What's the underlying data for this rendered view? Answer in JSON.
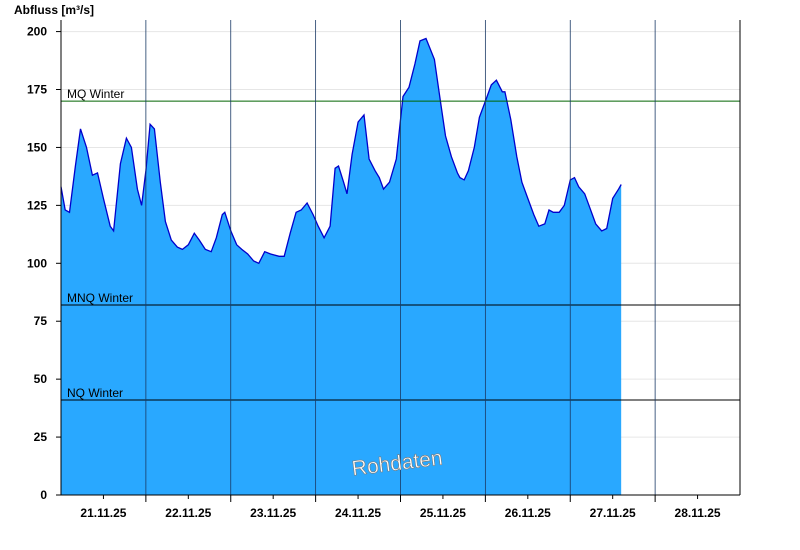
{
  "chart_data": {
    "type": "area",
    "ylabel": "Abfluss [m³/s]",
    "ylim": [
      0,
      205
    ],
    "y_ticks": [
      0,
      25,
      50,
      75,
      100,
      125,
      150,
      175,
      200
    ],
    "x_range_days": [
      20.5,
      28.5
    ],
    "x_ticks": [
      {
        "day": 21,
        "label": "21.11.25"
      },
      {
        "day": 22,
        "label": "22.11.25"
      },
      {
        "day": 23,
        "label": "23.11.25"
      },
      {
        "day": 24,
        "label": "24.11.25"
      },
      {
        "day": 25,
        "label": "25.11.25"
      },
      {
        "day": 26,
        "label": "26.11.25"
      },
      {
        "day": 27,
        "label": "27.11.25"
      },
      {
        "day": 28,
        "label": "28.11.25"
      }
    ],
    "reference_lines": [
      {
        "label": "MQ Winter",
        "value": 170,
        "color": "#006400"
      },
      {
        "label": "MNQ Winter",
        "value": 82,
        "color": "#000000"
      },
      {
        "label": "NQ Winter",
        "value": 41,
        "color": "#000000"
      }
    ],
    "series": [
      {
        "fill_color": "#29a8ff",
        "line_color": "#0000cc",
        "points": [
          [
            20.5,
            133
          ],
          [
            20.55,
            123
          ],
          [
            20.6,
            122
          ],
          [
            20.67,
            142
          ],
          [
            20.73,
            158
          ],
          [
            20.8,
            150
          ],
          [
            20.87,
            138
          ],
          [
            20.93,
            139
          ],
          [
            21.0,
            128
          ],
          [
            21.08,
            116
          ],
          [
            21.12,
            114
          ],
          [
            21.2,
            143
          ],
          [
            21.27,
            154
          ],
          [
            21.33,
            150
          ],
          [
            21.4,
            132
          ],
          [
            21.45,
            125
          ],
          [
            21.5,
            140
          ],
          [
            21.55,
            160
          ],
          [
            21.6,
            158
          ],
          [
            21.67,
            135
          ],
          [
            21.73,
            118
          ],
          [
            21.8,
            110
          ],
          [
            21.87,
            107
          ],
          [
            21.93,
            106
          ],
          [
            22.0,
            108
          ],
          [
            22.07,
            113
          ],
          [
            22.13,
            110
          ],
          [
            22.2,
            106
          ],
          [
            22.27,
            105
          ],
          [
            22.33,
            111
          ],
          [
            22.4,
            121
          ],
          [
            22.43,
            122
          ],
          [
            22.5,
            114
          ],
          [
            22.57,
            108
          ],
          [
            22.63,
            106
          ],
          [
            22.7,
            104
          ],
          [
            22.77,
            101
          ],
          [
            22.83,
            100
          ],
          [
            22.9,
            105
          ],
          [
            22.97,
            104
          ],
          [
            23.07,
            103
          ],
          [
            23.13,
            103
          ],
          [
            23.2,
            113
          ],
          [
            23.27,
            122
          ],
          [
            23.33,
            123
          ],
          [
            23.4,
            126
          ],
          [
            23.47,
            121
          ],
          [
            23.53,
            116
          ],
          [
            23.6,
            111
          ],
          [
            23.67,
            116
          ],
          [
            23.73,
            141
          ],
          [
            23.77,
            142
          ],
          [
            23.83,
            135
          ],
          [
            23.87,
            130
          ],
          [
            23.93,
            147
          ],
          [
            24.0,
            161
          ],
          [
            24.07,
            164
          ],
          [
            24.13,
            145
          ],
          [
            24.2,
            140
          ],
          [
            24.25,
            137
          ],
          [
            24.3,
            132
          ],
          [
            24.37,
            135
          ],
          [
            24.45,
            145
          ],
          [
            24.53,
            172
          ],
          [
            24.6,
            176
          ],
          [
            24.67,
            186
          ],
          [
            24.73,
            196
          ],
          [
            24.8,
            197
          ],
          [
            24.9,
            188
          ],
          [
            24.97,
            170
          ],
          [
            25.03,
            155
          ],
          [
            25.1,
            146
          ],
          [
            25.17,
            139
          ],
          [
            25.2,
            137
          ],
          [
            25.25,
            136
          ],
          [
            25.3,
            140
          ],
          [
            25.37,
            150
          ],
          [
            25.43,
            163
          ],
          [
            25.5,
            170
          ],
          [
            25.57,
            177
          ],
          [
            25.63,
            179
          ],
          [
            25.7,
            174
          ],
          [
            25.73,
            174
          ],
          [
            25.8,
            162
          ],
          [
            25.87,
            146
          ],
          [
            25.93,
            135
          ],
          [
            26.0,
            128
          ],
          [
            26.07,
            121
          ],
          [
            26.13,
            116
          ],
          [
            26.2,
            117
          ],
          [
            26.25,
            123
          ],
          [
            26.3,
            122
          ],
          [
            26.37,
            122
          ],
          [
            26.43,
            125
          ],
          [
            26.5,
            136
          ],
          [
            26.55,
            137
          ],
          [
            26.6,
            133
          ],
          [
            26.67,
            130
          ],
          [
            26.73,
            124
          ],
          [
            26.8,
            117
          ],
          [
            26.87,
            114
          ],
          [
            26.93,
            115
          ],
          [
            27.0,
            128
          ],
          [
            27.07,
            132
          ],
          [
            27.1,
            134
          ]
        ]
      }
    ],
    "watermark": "Rohdaten"
  }
}
